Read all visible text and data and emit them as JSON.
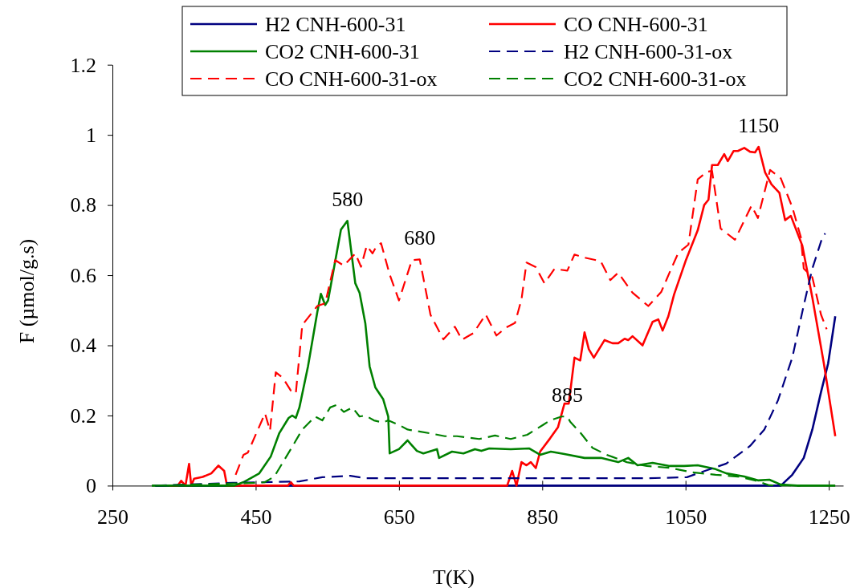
{
  "chart_data": {
    "type": "line",
    "xlabel": "T(K)",
    "ylabel": "F (µmol/g.s)",
    "xlim": [
      250,
      1270
    ],
    "xticks": [
      250,
      450,
      650,
      850,
      1050,
      1250
    ],
    "ylim": [
      0,
      1.2
    ],
    "yticks": [
      0,
      0.2,
      0.4,
      0.6,
      0.8,
      1,
      1.2
    ],
    "grid": false,
    "legend": "top",
    "marker": "none",
    "annotations": [
      {
        "text": "580",
        "x": 578,
        "y": 0.755
      },
      {
        "text": "680",
        "x": 679,
        "y": 0.645
      },
      {
        "text": "885",
        "x": 885,
        "y": 0.197
      },
      {
        "text": "1150",
        "x": 1152,
        "y": 0.966
      }
    ],
    "series": [
      {
        "name": "H2 CNH-600-31",
        "color": "#000080",
        "line_style": "solid",
        "x": [
          310,
          1183,
          1199,
          1215,
          1227,
          1239,
          1249,
          1259
        ],
        "values": [
          0,
          0,
          0.031,
          0.079,
          0.16,
          0.266,
          0.348,
          0.483
        ]
      },
      {
        "name": "CO CNH-600-31",
        "color": "#ff0000",
        "line_style": "solid",
        "x": [
          330,
          341,
          346,
          352,
          357,
          360,
          364,
          376,
          388,
          398,
          406,
          410,
          495,
          499,
          503,
          801,
          808,
          814,
          821,
          828,
          834,
          841,
          847,
          861,
          872,
          881,
          887,
          895,
          903,
          909,
          915,
          922,
          937,
          948,
          956,
          965,
          970,
          976,
          990,
          1004,
          1012,
          1018,
          1026,
          1034,
          1050,
          1067,
          1076,
          1082,
          1087,
          1095,
          1104,
          1109,
          1117,
          1123,
          1132,
          1140,
          1147,
          1152,
          1161,
          1170,
          1181,
          1189,
          1197,
          1213,
          1227,
          1243,
          1259
        ],
        "values": [
          0,
          0,
          0.014,
          0,
          0.062,
          0,
          0.02,
          0.025,
          0.035,
          0.057,
          0.042,
          0,
          0,
          0.01,
          0,
          0,
          0.042,
          0,
          0.067,
          0.058,
          0.067,
          0.05,
          0.097,
          0.135,
          0.167,
          0.234,
          0.234,
          0.365,
          0.357,
          0.437,
          0.389,
          0.365,
          0.415,
          0.406,
          0.406,
          0.419,
          0.415,
          0.426,
          0.4,
          0.467,
          0.474,
          0.442,
          0.483,
          0.545,
          0.64,
          0.728,
          0.8,
          0.815,
          0.914,
          0.914,
          0.945,
          0.925,
          0.954,
          0.954,
          0.963,
          0.952,
          0.95,
          0.966,
          0.893,
          0.859,
          0.835,
          0.757,
          0.769,
          0.684,
          0.536,
          0.349,
          0.141
        ]
      },
      {
        "name": "CO2 CNH-600-31",
        "color": "#008000",
        "line_style": "solid",
        "x": [
          305,
          420,
          433,
          455,
          471,
          483,
          496,
          501,
          506,
          511,
          523,
          536,
          541,
          547,
          551,
          569,
          578,
          589,
          595,
          603,
          609,
          617,
          628,
          635,
          637,
          650,
          662,
          668,
          675,
          684,
          703,
          706,
          724,
          740,
          756,
          765,
          776,
          806,
          832,
          847,
          862,
          881,
          909,
          932,
          956,
          970,
          983,
          1004,
          1028,
          1048,
          1067,
          1092,
          1107,
          1132,
          1151,
          1167,
          1183,
          1206,
          1259
        ],
        "values": [
          0,
          0,
          0.01,
          0.035,
          0.083,
          0.15,
          0.193,
          0.2,
          0.193,
          0.223,
          0.34,
          0.495,
          0.547,
          0.515,
          0.528,
          0.73,
          0.755,
          0.577,
          0.55,
          0.463,
          0.34,
          0.28,
          0.246,
          0.197,
          0.092,
          0.104,
          0.129,
          0.115,
          0.099,
          0.092,
          0.104,
          0.079,
          0.097,
          0.092,
          0.104,
          0.099,
          0.106,
          0.104,
          0.106,
          0.088,
          0.097,
          0.09,
          0.079,
          0.079,
          0.067,
          0.079,
          0.058,
          0.065,
          0.056,
          0.056,
          0.058,
          0.047,
          0.035,
          0.026,
          0.015,
          0.017,
          0.003,
          0,
          0
        ]
      },
      {
        "name": "H2 CNH-600-31-ox",
        "color": "#000080",
        "line_style": "dashed",
        "x": [
          310,
          418,
          511,
          543,
          582,
          603,
          635,
          710,
          828,
          996,
          1052,
          1067,
          1107,
          1140,
          1160,
          1179,
          1199,
          1215,
          1227,
          1241,
          1245
        ],
        "values": [
          0,
          0.008,
          0.012,
          0.024,
          0.028,
          0.021,
          0.021,
          0.021,
          0.021,
          0.021,
          0.024,
          0.035,
          0.063,
          0.113,
          0.16,
          0.243,
          0.365,
          0.514,
          0.619,
          0.708,
          0.719
        ]
      },
      {
        "name": "CO CNH-600-31-ox",
        "color": "#ff0000",
        "line_style": "dashed",
        "x": [
          422,
          433,
          439,
          463,
          470,
          478,
          488,
          499,
          506,
          515,
          536,
          547,
          561,
          573,
          589,
          597,
          605,
          613,
          619,
          625,
          637,
          650,
          668,
          679,
          694,
          712,
          728,
          738,
          754,
          771,
          786,
          799,
          812,
          821,
          828,
          841,
          853,
          867,
          885,
          895,
          909,
          925,
          932,
          945,
          956,
          976,
          998,
          1016,
          1028,
          1040,
          1054,
          1067,
          1080,
          1087,
          1099,
          1119,
          1142,
          1151,
          1168,
          1183,
          1199,
          1211,
          1215,
          1227,
          1239,
          1247
        ],
        "values": [
          0.031,
          0.088,
          0.094,
          0.206,
          0.157,
          0.323,
          0.307,
          0.271,
          0.263,
          0.458,
          0.512,
          0.52,
          0.643,
          0.627,
          0.662,
          0.624,
          0.684,
          0.662,
          0.684,
          0.691,
          0.602,
          0.528,
          0.643,
          0.645,
          0.487,
          0.417,
          0.453,
          0.416,
          0.435,
          0.488,
          0.428,
          0.45,
          0.464,
          0.531,
          0.636,
          0.623,
          0.577,
          0.618,
          0.613,
          0.659,
          0.65,
          0.643,
          0.638,
          0.586,
          0.607,
          0.55,
          0.512,
          0.552,
          0.609,
          0.664,
          0.687,
          0.873,
          0.895,
          0.897,
          0.733,
          0.701,
          0.798,
          0.763,
          0.9,
          0.876,
          0.794,
          0.708,
          0.619,
          0.594,
          0.488,
          0.446
        ]
      },
      {
        "name": "CO2 CNH-600-31-ox",
        "color": "#008000",
        "line_style": "dashed",
        "x": [
          310,
          448,
          463,
          476,
          499,
          515,
          533,
          543,
          554,
          563,
          573,
          585,
          595,
          603,
          615,
          627,
          635,
          650,
          662,
          694,
          714,
          731,
          743,
          762,
          784,
          806,
          829,
          851,
          861,
          877,
          885,
          889,
          904,
          920,
          940,
          968,
          996,
          1028,
          1059,
          1092,
          1123,
          1147,
          1167,
          1210
        ],
        "values": [
          0,
          0.008,
          0.01,
          0.026,
          0.104,
          0.16,
          0.197,
          0.186,
          0.223,
          0.23,
          0.21,
          0.223,
          0.197,
          0.2,
          0.186,
          0.18,
          0.186,
          0.173,
          0.16,
          0.149,
          0.141,
          0.141,
          0.138,
          0.133,
          0.143,
          0.133,
          0.145,
          0.173,
          0.186,
          0.197,
          0.197,
          0.182,
          0.149,
          0.108,
          0.088,
          0.067,
          0.056,
          0.051,
          0.038,
          0.031,
          0.026,
          0.015,
          0.001,
          0
        ]
      }
    ]
  }
}
